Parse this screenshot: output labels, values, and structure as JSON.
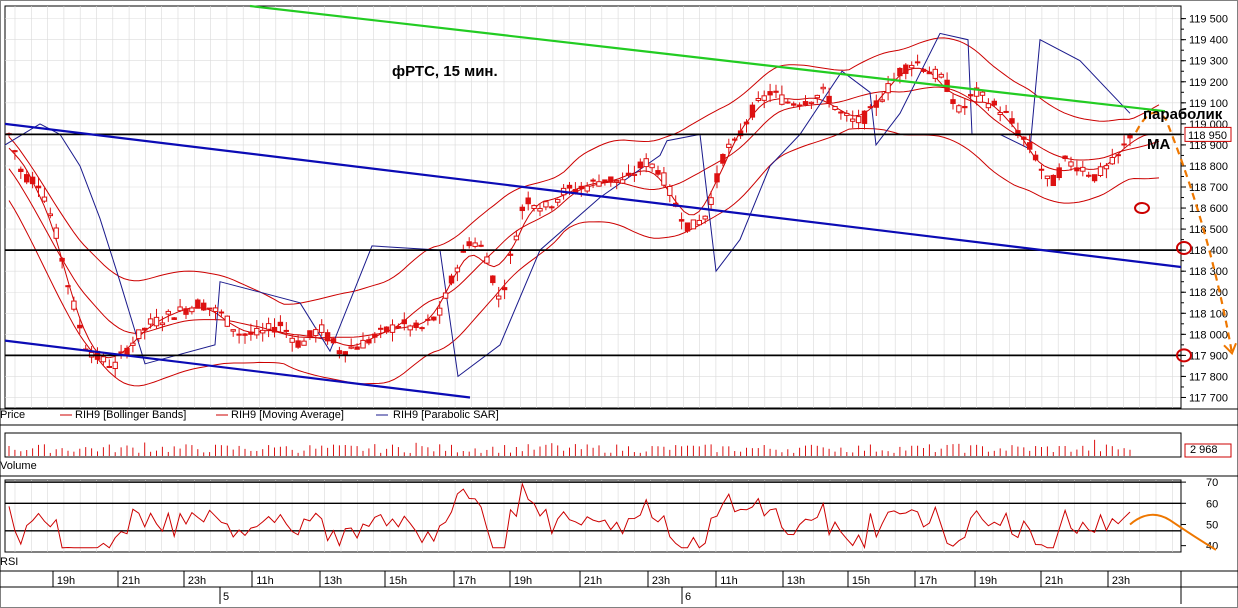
{
  "chart_data": {
    "type": "candlestick",
    "title": "фРТС,  15 мин.",
    "price_axis": {
      "ticks": [
        "119 500",
        "119 400",
        "119 300",
        "119 200",
        "119 100",
        "119 000",
        "118 900",
        "118 800",
        "118 700",
        "118 600",
        "118 500",
        "118 400",
        "118 300",
        "118 200",
        "118 100",
        "118 000",
        "117 900",
        "117 800",
        "117 700"
      ],
      "ylim": [
        117650,
        119560
      ],
      "last_price_label": "118 950"
    },
    "legend": {
      "price": "Price",
      "bollinger": "RIH9 [Bollinger Bands]",
      "ma": "RIH9 [Moving Average]",
      "sar": "RIH9 [Parabolic SAR]"
    },
    "volume": {
      "label": "Volume",
      "last": "2 968"
    },
    "rsi": {
      "label": "RSI",
      "ticks": [
        "70",
        "60",
        "50",
        "40"
      ],
      "ylim": [
        37,
        71
      ]
    },
    "time_axis": {
      "hours": [
        "19h",
        "21h",
        "23h",
        "11h",
        "13h",
        "15h",
        "17h",
        "19h",
        "21h",
        "23h",
        "11h",
        "13h",
        "15h",
        "17h",
        "19h",
        "21h",
        "23h"
      ],
      "days": [
        "5",
        "6"
      ]
    },
    "annotations": {
      "parabolic": "параболик",
      "ma": "МА"
    },
    "levels": [
      118950,
      118400,
      117900
    ],
    "colors": {
      "candle": "#dd1111",
      "bollinger": "#cc0000",
      "ma": "#cc0000",
      "sar": "#1a1a8c",
      "trend_green": "#22cc22",
      "trend_blue": "#0b0bb5",
      "forecast": "#ee7700"
    }
  }
}
